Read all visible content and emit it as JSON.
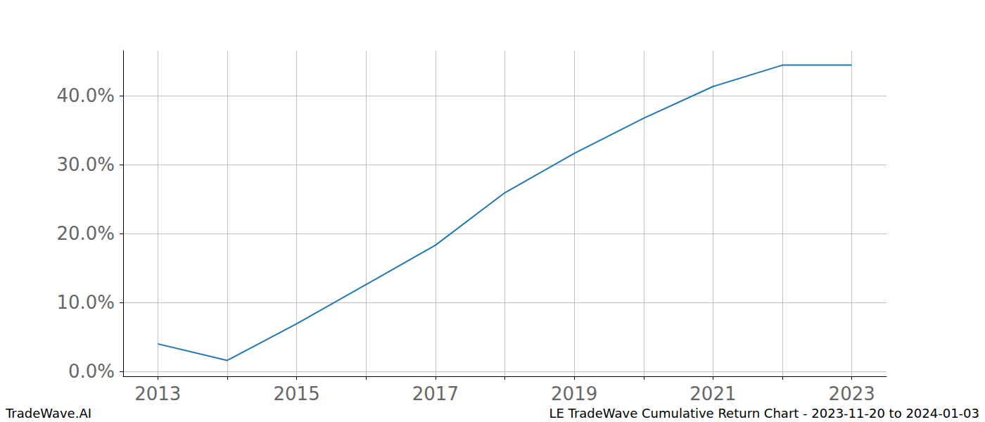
{
  "chart_data": {
    "type": "line",
    "title": "LE TradeWave Cumulative Return Chart - 2023-11-20 to 2024-01-03",
    "source": "TradeWave.AI",
    "x": [
      2013,
      2014,
      2015,
      2016,
      2017,
      2018,
      2019,
      2020,
      2021,
      2022,
      2023
    ],
    "values": [
      4.0,
      1.6,
      6.9,
      12.6,
      18.3,
      25.9,
      31.6,
      36.7,
      41.3,
      44.4,
      44.4
    ],
    "color": "#1f77b4",
    "xlim": [
      2012.5,
      2023.5
    ],
    "xticks": [
      2013,
      2015,
      2017,
      2019,
      2021,
      2023
    ],
    "ylim": [
      -0.7,
      46.5
    ],
    "yticks": [
      {
        "value": 0,
        "label": "0.0%"
      },
      {
        "value": 10,
        "label": "10.0%"
      },
      {
        "value": 20,
        "label": "20.0%"
      },
      {
        "value": 30,
        "label": "30.0%"
      },
      {
        "value": 40,
        "label": "40.0%"
      }
    ],
    "grid": true
  }
}
